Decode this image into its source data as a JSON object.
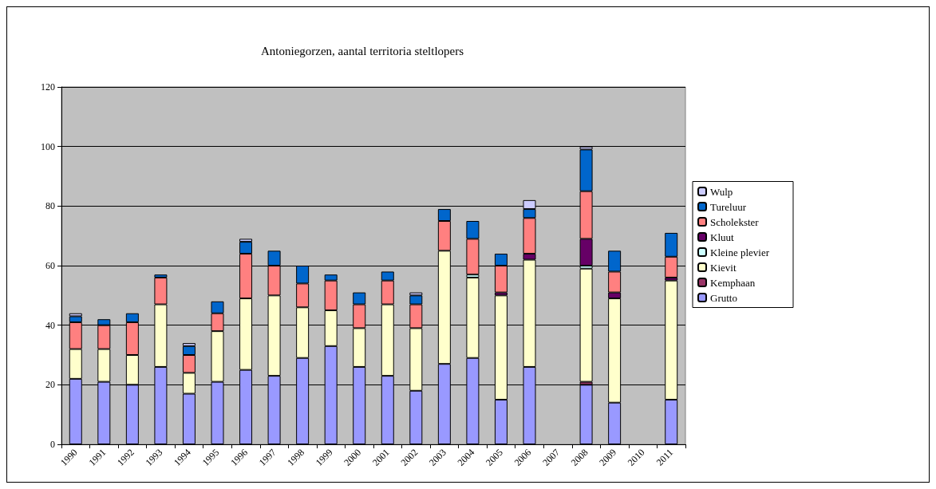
{
  "chart_data": {
    "type": "bar",
    "title": "Antoniegorzen, aantal territoria steltlopers",
    "stacked": true,
    "categories": [
      "1990",
      "1991",
      "1992",
      "1993",
      "1994",
      "1995",
      "1996",
      "1997",
      "1998",
      "1999",
      "2000",
      "2001",
      "2002",
      "2003",
      "2004",
      "2005",
      "2006",
      "2007",
      "2008",
      "2009",
      "2010",
      "2011"
    ],
    "series": [
      {
        "name": "Grutto",
        "color": "#9999ff",
        "values": [
          22,
          21,
          20,
          26,
          17,
          21,
          25,
          23,
          29,
          33,
          26,
          23,
          18,
          27,
          29,
          15,
          26,
          null,
          20,
          14,
          null,
          15
        ]
      },
      {
        "name": "Kemphaan",
        "color": "#993366",
        "values": [
          null,
          null,
          null,
          null,
          null,
          null,
          null,
          null,
          null,
          null,
          null,
          null,
          null,
          null,
          null,
          null,
          null,
          null,
          1,
          null,
          null,
          null
        ]
      },
      {
        "name": "Kievit",
        "color": "#ffffcc",
        "values": [
          10,
          11,
          10,
          21,
          7,
          17,
          24,
          27,
          17,
          12,
          13,
          24,
          21,
          38,
          27,
          35,
          36,
          null,
          38,
          35,
          null,
          40
        ]
      },
      {
        "name": "Kleine plevier",
        "color": "#ccffff",
        "values": [
          null,
          null,
          null,
          null,
          null,
          null,
          null,
          null,
          null,
          null,
          null,
          null,
          null,
          null,
          1,
          null,
          null,
          null,
          1,
          null,
          null,
          null
        ]
      },
      {
        "name": "Kluut",
        "color": "#660066",
        "values": [
          null,
          null,
          null,
          null,
          null,
          null,
          null,
          null,
          null,
          null,
          null,
          null,
          null,
          null,
          null,
          1,
          2,
          null,
          9,
          2,
          null,
          1
        ]
      },
      {
        "name": "Scholekster",
        "color": "#ff8080",
        "values": [
          9,
          8,
          11,
          9,
          6,
          6,
          15,
          10,
          8,
          10,
          8,
          8,
          8,
          10,
          12,
          9,
          12,
          null,
          16,
          7,
          null,
          7
        ]
      },
      {
        "name": "Tureluur",
        "color": "#0066cc",
        "values": [
          2,
          2,
          3,
          1,
          3,
          4,
          4,
          5,
          6,
          2,
          4,
          3,
          3,
          4,
          6,
          4,
          3,
          null,
          14,
          7,
          null,
          8
        ]
      },
      {
        "name": "Wulp",
        "color": "#ccccff",
        "values": [
          1,
          null,
          null,
          null,
          1,
          null,
          1,
          null,
          null,
          null,
          null,
          null,
          1,
          null,
          null,
          null,
          3,
          null,
          1,
          null,
          null,
          null
        ]
      }
    ],
    "ylim": [
      0,
      120
    ],
    "yticks": [
      0,
      20,
      40,
      60,
      80,
      100,
      120
    ],
    "grid": "y",
    "legend": "right"
  }
}
